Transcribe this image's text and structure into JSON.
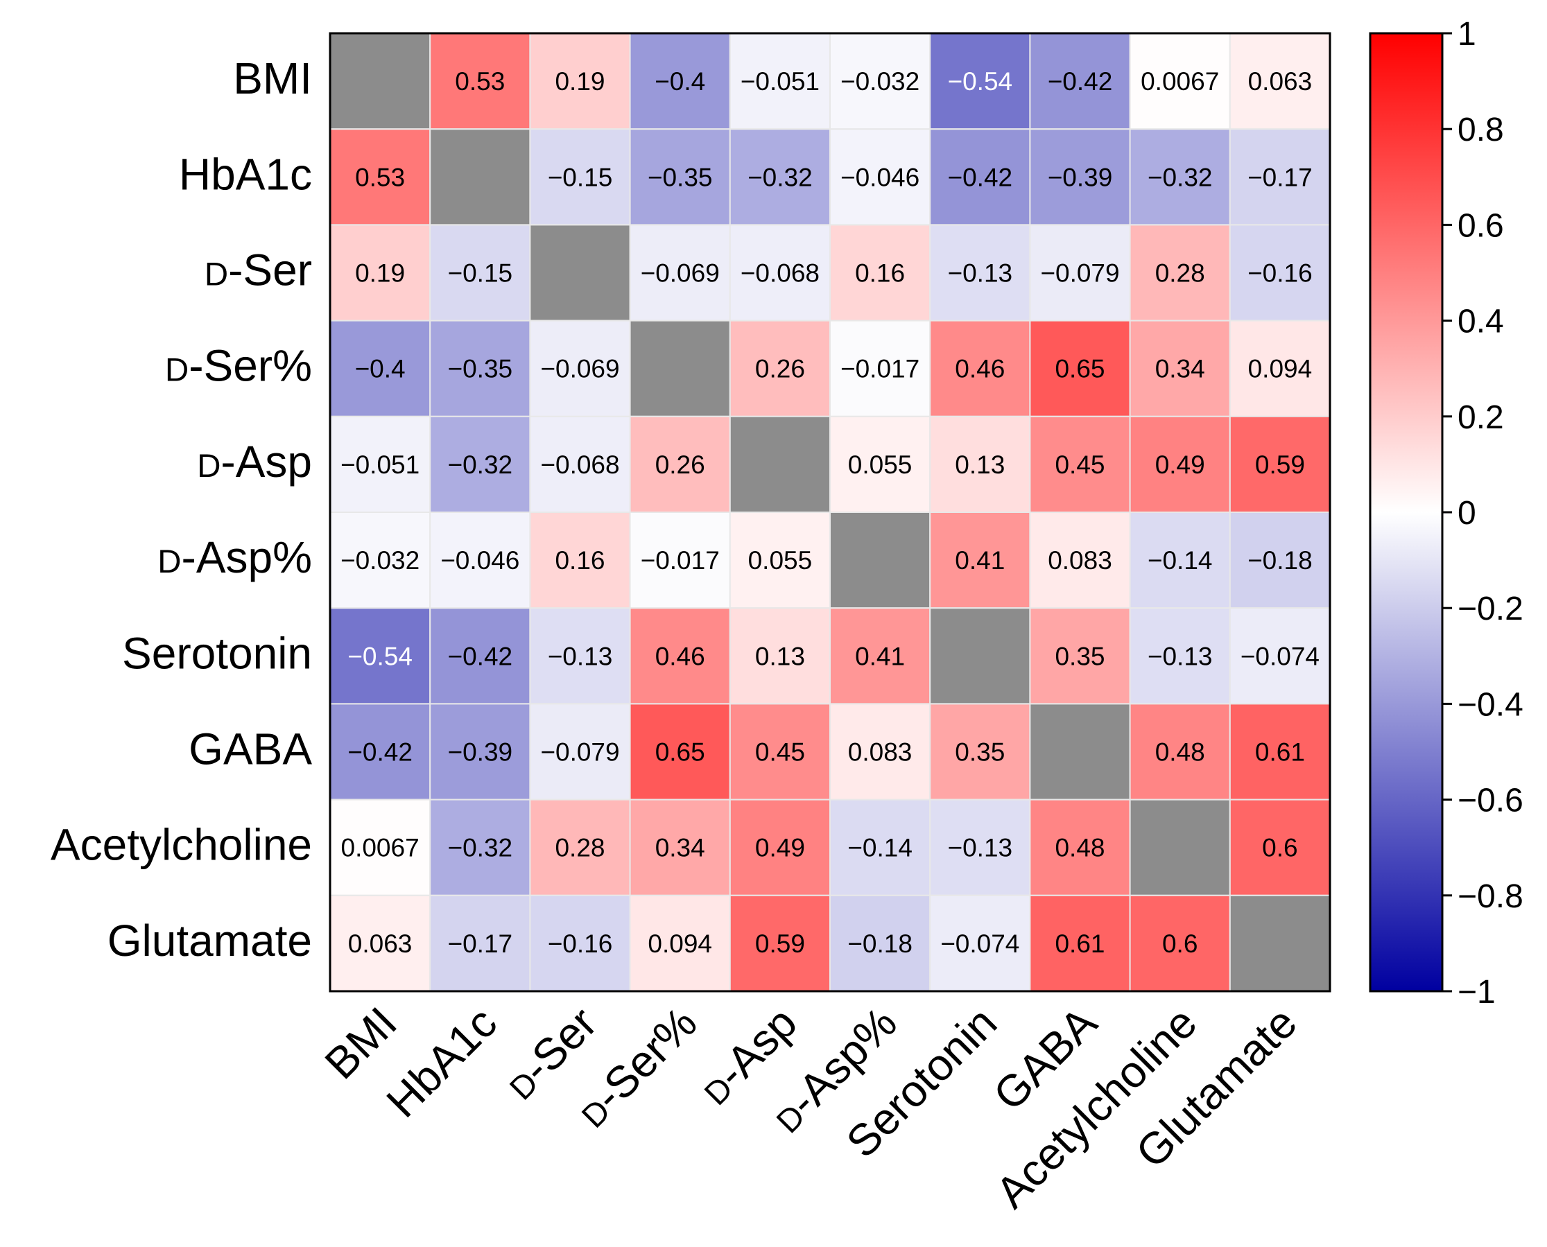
{
  "chart_data": {
    "type": "heatmap",
    "title": "",
    "variables": [
      {
        "pre": "",
        "main": "BMI"
      },
      {
        "pre": "",
        "main": "HbA1c"
      },
      {
        "pre": "D",
        "main": "-Ser"
      },
      {
        "pre": "D",
        "main": "-Ser%"
      },
      {
        "pre": "D",
        "main": "-Asp"
      },
      {
        "pre": "D",
        "main": "-Asp%"
      },
      {
        "pre": "",
        "main": "Serotonin"
      },
      {
        "pre": "",
        "main": "GABA"
      },
      {
        "pre": "",
        "main": "Acetylcholine"
      },
      {
        "pre": "",
        "main": "Glutamate"
      }
    ],
    "values": [
      [
        null,
        "0.53",
        "0.19",
        "−0.4",
        "−0.051",
        "−0.032",
        "−0.54",
        "−0.42",
        "0.0067",
        "0.063"
      ],
      [
        "0.53",
        null,
        "−0.15",
        "−0.35",
        "−0.32",
        "−0.046",
        "−0.42",
        "−0.39",
        "−0.32",
        "−0.17"
      ],
      [
        "0.19",
        "−0.15",
        null,
        "−0.069",
        "−0.068",
        "0.16",
        "−0.13",
        "−0.079",
        "0.28",
        "−0.16"
      ],
      [
        "−0.4",
        "−0.35",
        "−0.069",
        null,
        "0.26",
        "−0.017",
        "0.46",
        "0.65",
        "0.34",
        "0.094"
      ],
      [
        "−0.051",
        "−0.32",
        "−0.068",
        "0.26",
        null,
        "0.055",
        "0.13",
        "0.45",
        "0.49",
        "0.59"
      ],
      [
        "−0.032",
        "−0.046",
        "0.16",
        "−0.017",
        "0.055",
        null,
        "0.41",
        "0.083",
        "−0.14",
        "−0.18"
      ],
      [
        "−0.54",
        "−0.42",
        "−0.13",
        "0.46",
        "0.13",
        "0.41",
        null,
        "0.35",
        "−0.13",
        "−0.074"
      ],
      [
        "−0.42",
        "−0.39",
        "−0.079",
        "0.65",
        "0.45",
        "0.083",
        "0.35",
        null,
        "0.48",
        "0.61"
      ],
      [
        "0.0067",
        "−0.32",
        "0.28",
        "0.34",
        "0.49",
        "−0.14",
        "−0.13",
        "0.48",
        null,
        "0.6"
      ],
      [
        "0.063",
        "−0.17",
        "−0.16",
        "0.094",
        "0.59",
        "−0.18",
        "−0.074",
        "0.61",
        "0.6",
        null
      ]
    ],
    "colorbar": {
      "range": [
        -1,
        1
      ],
      "ticks": [
        1,
        0.8,
        0.6,
        0.4,
        0.2,
        0,
        -0.2,
        -0.4,
        -0.6,
        -0.8,
        -1
      ],
      "tick_labels": [
        "1",
        "0.8",
        "0.6",
        "0.4",
        "0.2",
        "0",
        "−0.2",
        "−0.4",
        "−0.6",
        "−0.8",
        "−1"
      ],
      "colors": {
        "negative": "#0000a0",
        "zero": "#ffffff",
        "positive": "#ff0000"
      }
    },
    "diagonal_color": "#8c8c8c",
    "grid_color": "#e8e8e8",
    "border_color": "#000000"
  }
}
